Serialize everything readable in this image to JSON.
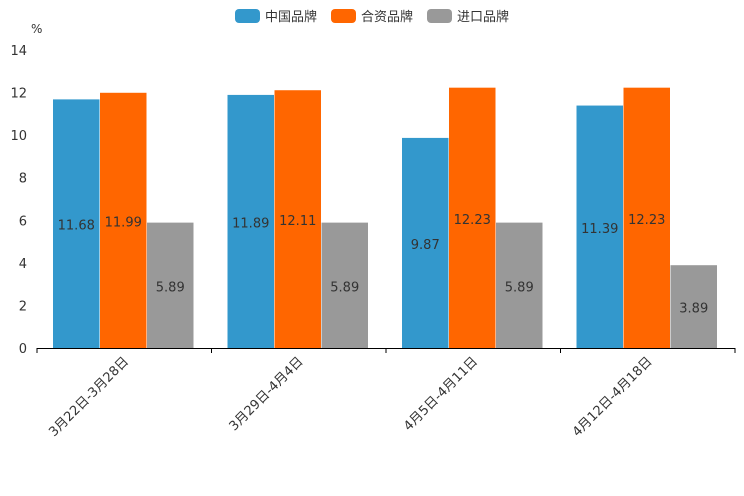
{
  "chart_data": {
    "type": "bar",
    "unit": "%",
    "categories": [
      "3月22日-3月28日",
      "3月29日-4月4日",
      "4月5日-4月11日",
      "4月12日-4月18日"
    ],
    "series": [
      {
        "name": "中国品牌",
        "color": "#3398cc",
        "values": [
          11.68,
          11.89,
          9.87,
          11.39
        ],
        "labels": [
          "11.68",
          "11.89",
          "9.87",
          "11.39"
        ]
      },
      {
        "name": "合资品牌",
        "color": "#ff6600",
        "values": [
          11.99,
          12.11,
          12.23,
          12.23
        ],
        "labels": [
          "11.99",
          "12.11",
          "12.23",
          "12.23"
        ]
      },
      {
        "name": "进口品牌",
        "color": "#999999",
        "values": [
          5.89,
          5.89,
          5.89,
          3.89
        ],
        "labels": [
          "5.89",
          "5.89",
          "5.89",
          "3.89"
        ]
      }
    ],
    "ylim": [
      0,
      14
    ],
    "yticks": [
      0,
      2,
      4,
      6,
      8,
      10,
      12,
      14
    ],
    "legend_position": "top-center"
  }
}
